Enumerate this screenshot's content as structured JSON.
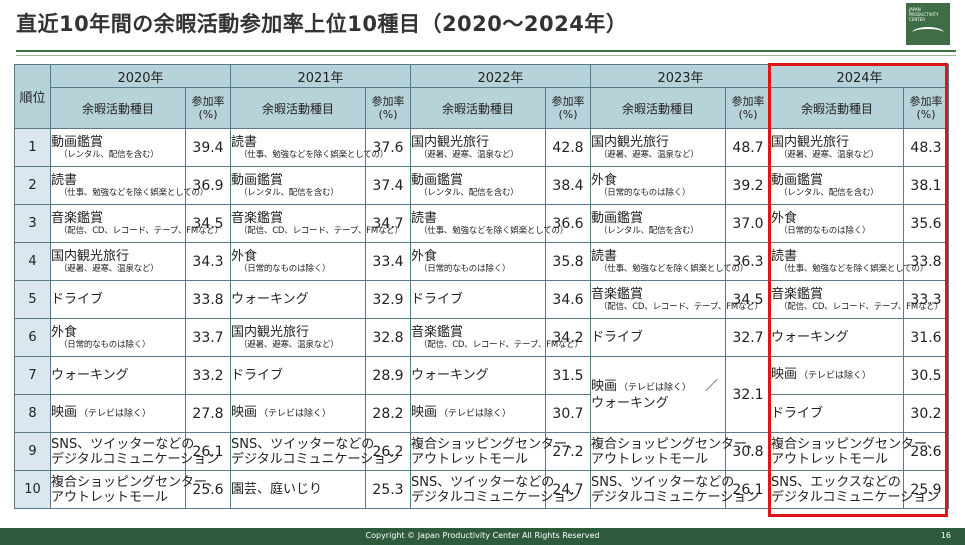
{
  "page": {
    "title": "直近10年間の余暇活動参加率上位10種目（2020～2024年）",
    "copyright": "Copyright © Japan Productivity Center All Rights Reserved",
    "page_number": "16",
    "logo_text": "JAPAN PRODUCTIVITY CENTER"
  },
  "table": {
    "rank_header": "順位",
    "activity_header": "余暇活動種目",
    "rate_header_line1": "参加率",
    "rate_header_line2": "(%)",
    "highlight_color": "#e0141b",
    "years": [
      {
        "year": "2020年",
        "rows": [
          {
            "name": "動画鑑賞",
            "note": "（レンタル、配信を含む）",
            "val": "39.4"
          },
          {
            "name": "読書",
            "note": "（仕事、勉強などを除く娯楽としての）",
            "val": "36.9"
          },
          {
            "name": "音楽鑑賞",
            "note": "（配信、CD、レコード、テープ、FMなど）",
            "val": "34.5"
          },
          {
            "name": "国内観光旅行",
            "note": "（避暑、避寒、温泉など）",
            "val": "34.3"
          },
          {
            "name": "ドライブ",
            "note": "",
            "val": "33.8"
          },
          {
            "name": "外食",
            "note": "（日常的なものは除く）",
            "val": "33.7"
          },
          {
            "name": "ウォーキング",
            "note": "",
            "val": "33.2"
          },
          {
            "name": "映画",
            "small": "（テレビは除く）",
            "note": "",
            "val": "27.8"
          },
          {
            "name": "SNS、ツイッターなどの",
            "name2": "デジタルコミュニケーション",
            "note": "",
            "val": "26.1"
          },
          {
            "name": "複合ショッピングセンター、",
            "name2": "アウトレットモール",
            "note": "",
            "val": "25.6"
          }
        ]
      },
      {
        "year": "2021年",
        "rows": [
          {
            "name": "読書",
            "note": "（仕事、勉強などを除く娯楽としての）",
            "val": "37.6"
          },
          {
            "name": "動画鑑賞",
            "note": "（レンタル、配信を含む）",
            "val": "37.4"
          },
          {
            "name": "音楽鑑賞",
            "note": "（配信、CD、レコード、テープ、FMなど）",
            "val": "34.7"
          },
          {
            "name": "外食",
            "note": "（日常的なものは除く）",
            "val": "33.4"
          },
          {
            "name": "ウォーキング",
            "note": "",
            "val": "32.9"
          },
          {
            "name": "国内観光旅行",
            "note": "（避暑、避寒、温泉など）",
            "val": "32.8"
          },
          {
            "name": "ドライブ",
            "note": "",
            "val": "28.9"
          },
          {
            "name": "映画",
            "small": "（テレビは除く）",
            "note": "",
            "val": "28.2"
          },
          {
            "name": "SNS、ツイッターなどの",
            "name2": "デジタルコミュニケーション",
            "note": "",
            "val": "26.2"
          },
          {
            "name": "園芸、庭いじり",
            "note": "",
            "val": "25.3"
          }
        ]
      },
      {
        "year": "2022年",
        "rows": [
          {
            "name": "国内観光旅行",
            "note": "（避暑、避寒、温泉など）",
            "val": "42.8"
          },
          {
            "name": "動画鑑賞",
            "note": "（レンタル、配信を含む）",
            "val": "38.4"
          },
          {
            "name": "読書",
            "note": "（仕事、勉強などを除く娯楽としての）",
            "val": "36.6"
          },
          {
            "name": "外食",
            "note": "（日常的なものは除く）",
            "val": "35.8"
          },
          {
            "name": "ドライブ",
            "note": "",
            "val": "34.6"
          },
          {
            "name": "音楽鑑賞",
            "note": "（配信、CD、レコード、テープ、FMなど）",
            "val": "34.2"
          },
          {
            "name": "ウォーキング",
            "note": "",
            "val": "31.5"
          },
          {
            "name": "映画",
            "small": "（テレビは除く）",
            "note": "",
            "val": "30.7"
          },
          {
            "name": "複合ショッピングセンター、",
            "name2": "アウトレットモール",
            "note": "",
            "val": "27.2"
          },
          {
            "name": "SNS、ツイッターなどの",
            "name2": "デジタルコミュニケーション",
            "note": "",
            "val": "24.7"
          }
        ]
      },
      {
        "year": "2023年",
        "rows": [
          {
            "name": "国内観光旅行",
            "note": "（避暑、避寒、温泉など）",
            "val": "48.7"
          },
          {
            "name": "外食",
            "note": "（日常的なものは除く）",
            "val": "39.2"
          },
          {
            "name": "動画鑑賞",
            "note": "（レンタル、配信を含む）",
            "val": "37.0"
          },
          {
            "name": "読書",
            "note": "（仕事、勉強などを除く娯楽としての）",
            "val": "36.3"
          },
          {
            "name": "音楽鑑賞",
            "note": "（配信、CD、レコード、テープ、FMなど）",
            "val": "34.5"
          },
          {
            "name": "ドライブ",
            "note": "",
            "val": "32.7"
          },
          {
            "name": "映画",
            "small": "（テレビは除く）",
            "suffix": "／",
            "name2": "ウォーキング",
            "note": "",
            "val": "32.1",
            "span": 2
          },
          {
            "skip": true
          },
          {
            "name": "複合ショッピングセンター、",
            "name2": "アウトレットモール",
            "note": "",
            "val": "30.8"
          },
          {
            "name": "SNS、ツイッターなどの",
            "name2": "デジタルコミュニケーション",
            "note": "",
            "val": "26.1"
          }
        ]
      },
      {
        "year": "2024年",
        "rows": [
          {
            "name": "国内観光旅行",
            "note": "（避暑、避寒、温泉など）",
            "val": "48.3"
          },
          {
            "name": "動画鑑賞",
            "note": "（レンタル、配信を含む）",
            "val": "38.1"
          },
          {
            "name": "外食",
            "note": "（日常的なものは除く）",
            "val": "35.6"
          },
          {
            "name": "読書",
            "note": "（仕事、勉強などを除く娯楽としての）",
            "val": "33.8"
          },
          {
            "name": "音楽鑑賞",
            "note": "（配信、CD、レコード、テープ、FMなど）",
            "val": "33.3"
          },
          {
            "name": "ウォーキング",
            "note": "",
            "val": "31.6"
          },
          {
            "name": "映画",
            "small": "（テレビは除く）",
            "note": "",
            "val": "30.5"
          },
          {
            "name": "ドライブ",
            "note": "",
            "val": "30.2"
          },
          {
            "name": "複合ショッピングセンター、",
            "name2": "アウトレットモール",
            "note": "",
            "val": "28.6"
          },
          {
            "name": "SNS、エックスなどの",
            "name2": "デジタルコミュニケーション",
            "note": "",
            "val": "25.9"
          }
        ]
      }
    ]
  }
}
